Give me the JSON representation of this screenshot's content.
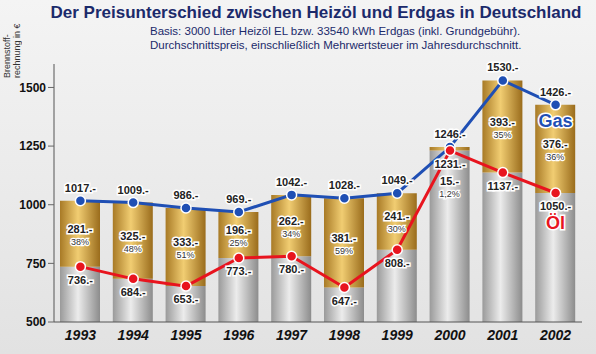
{
  "chart_data": {
    "type": "bar",
    "title": "Der Preisunterschied zwischen Heizöl und Erdgas in Deutschland",
    "subtitle": [
      "Basis: 3000 Liter Heizöl EL bzw. 33540 kWh Erdgas (inkl. Grundgebühr).",
      "Durchschnittspreis, einschließlich Mehrwertsteuer im Jahresdurchschnitt."
    ],
    "y_label": "Brennstoff-rechnung in €",
    "categories": [
      "1993",
      "1994",
      "1995",
      "1996",
      "1997",
      "1998",
      "1999",
      "2000",
      "2001",
      "2002"
    ],
    "series": [
      {
        "name": "Gas",
        "type": "line",
        "color": "#1f4fb4",
        "marker": "circle",
        "values": [
          1017,
          1009,
          986,
          969,
          1042,
          1028,
          1049,
          1246,
          1530,
          1426
        ],
        "value_labels": [
          "1017.-",
          "1009.-",
          "986.-",
          "969.-",
          "1042.-",
          "1028.-",
          "1049.-",
          "1246.-",
          "1530.-",
          "1426.-"
        ]
      },
      {
        "name": "Öl",
        "type": "line",
        "color": "#e8141e",
        "marker": "circle",
        "values": [
          736,
          684,
          653,
          773,
          780,
          647,
          808,
          1231,
          1137,
          1050
        ],
        "value_labels": [
          "736.-",
          "684.-",
          "653.-",
          "773.-",
          "780.-",
          "647.-",
          "808.-",
          "1231.-",
          "1137.-",
          "1050.-"
        ]
      }
    ],
    "difference": {
      "values": [
        281,
        325,
        333,
        196,
        262,
        381,
        241,
        15,
        393,
        376
      ],
      "value_labels": [
        "281.-",
        "325.-",
        "333.-",
        "196.-",
        "262.-",
        "381.-",
        "241.-",
        "15.-",
        "393.-",
        "376.-"
      ],
      "percent_labels": [
        "38%",
        "48%",
        "51%",
        "25%",
        "34%",
        "59%",
        "30%",
        "1,2%",
        "35%",
        "36%"
      ]
    },
    "ylim": [
      500,
      1600
    ],
    "yticks": [
      500,
      750,
      1000,
      1250,
      1500
    ],
    "data_labels": true,
    "grid": false
  }
}
